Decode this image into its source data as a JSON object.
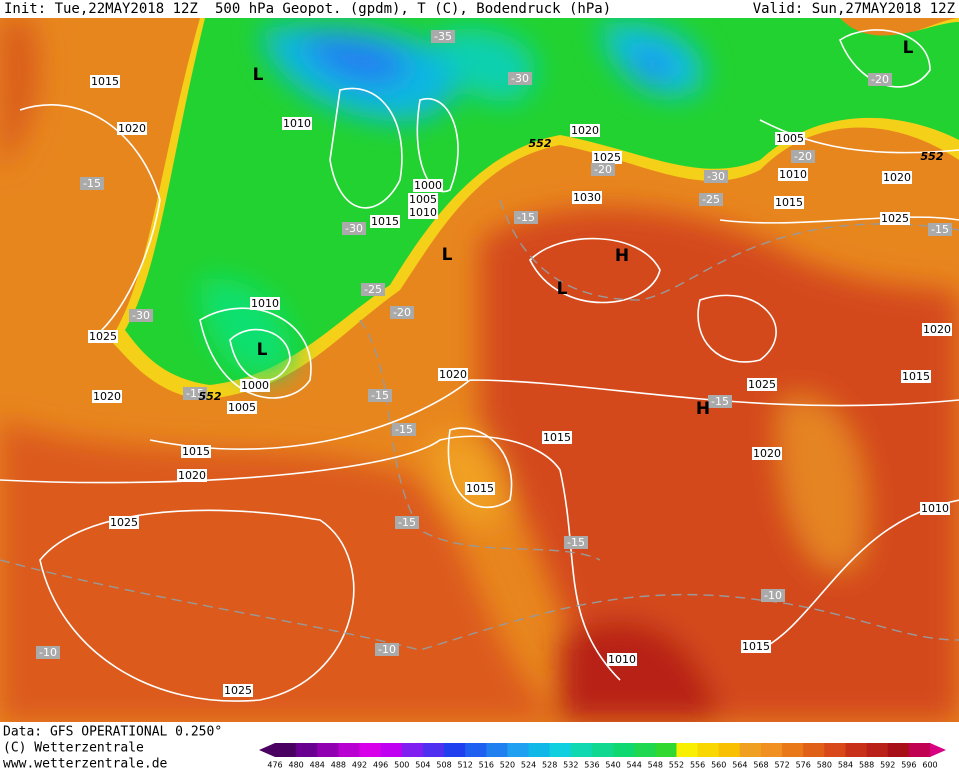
{
  "header": {
    "init": "Init: Tue,22MAY2018 12Z",
    "title": "500 hPa Geopot. (gpdm), T (C), Bodendruck (hPa)",
    "valid": "Valid: Sun,27MAY2018 12Z"
  },
  "footer": {
    "lines": [
      "Data: GFS OPERATIONAL 0.250°",
      "(C) Wetterzentrale",
      "www.wetterzentrale.de"
    ]
  },
  "colorbar": {
    "labels": [
      476,
      480,
      484,
      488,
      492,
      496,
      500,
      504,
      508,
      512,
      516,
      520,
      524,
      528,
      532,
      536,
      540,
      544,
      548,
      552,
      556,
      560,
      564,
      568,
      572,
      576,
      580,
      584,
      588,
      592,
      596,
      600
    ]
  },
  "map": {
    "pressure_labels": [
      "1015",
      "1020",
      "1010",
      "1000",
      "1005",
      "1010",
      "1015",
      "1010",
      "1000",
      "1005",
      "1025",
      "1020",
      "1015",
      "1020",
      "1025",
      "1025",
      "1020",
      "1015",
      "1015",
      "1030",
      "1025",
      "1020",
      "1005",
      "1010",
      "1015",
      "1020",
      "1025",
      "1020",
      "1015",
      "1025",
      "1020",
      "1010",
      "1015",
      "1010"
    ],
    "temperature_labels": [
      "-35",
      "-30",
      "-20",
      "-15",
      "-30",
      "-25",
      "-20",
      "-30",
      "-15",
      "-20",
      "-20",
      "-30",
      "-25",
      "-15",
      "-15",
      "-15",
      "-15",
      "-15",
      "-15",
      "-15",
      "-10",
      "-10",
      "-10"
    ],
    "geopotential_labels": [
      "552",
      "552",
      "552"
    ],
    "centers": [
      "L",
      "L",
      "L",
      "L",
      "H",
      "L",
      "H"
    ]
  }
}
